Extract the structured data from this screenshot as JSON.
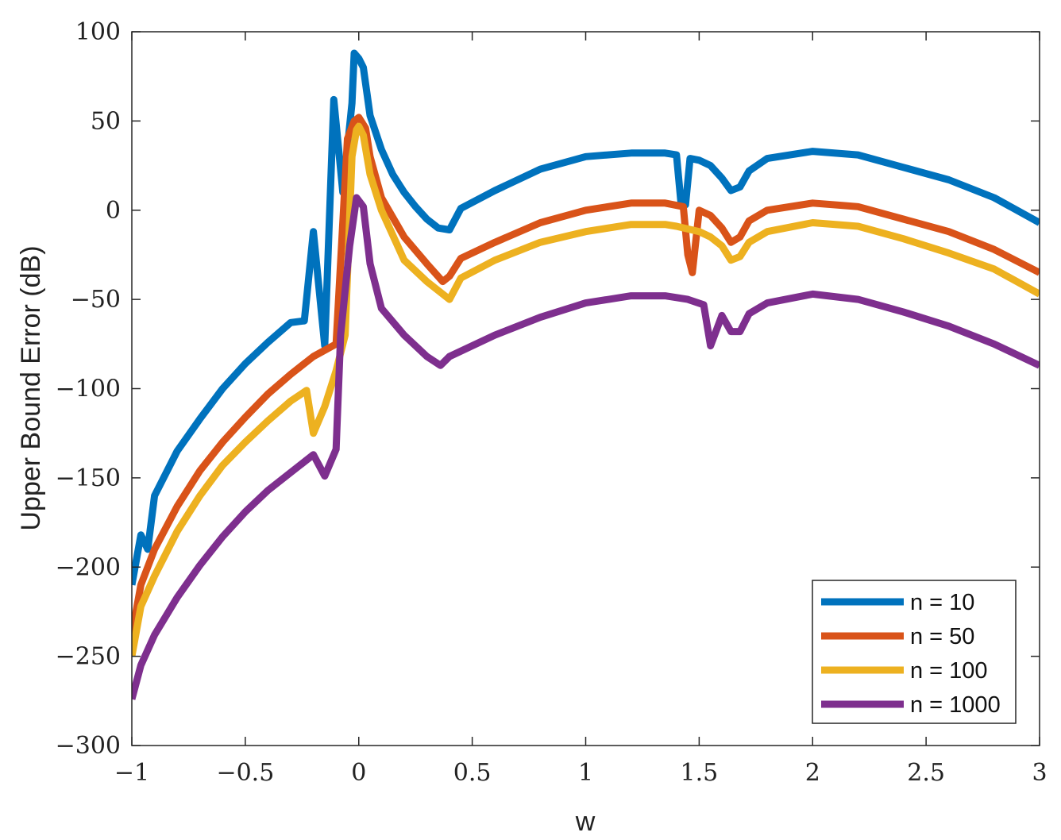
{
  "chart_data": {
    "type": "line",
    "title": "",
    "xlabel": "w",
    "ylabel": "Upper Bound Error (dB)",
    "xlim": [
      -1,
      3
    ],
    "ylim": [
      -300,
      100
    ],
    "xticks": [
      -1,
      -0.5,
      0,
      0.5,
      1,
      1.5,
      2,
      2.5,
      3
    ],
    "xtick_labels": [
      "−1",
      "−0.5",
      "0",
      "0.5",
      "1",
      "1.5",
      "2",
      "2.5",
      "3"
    ],
    "yticks": [
      100,
      50,
      0,
      -50,
      -100,
      -150,
      -200,
      -250,
      -300
    ],
    "ytick_labels": [
      "100",
      "50",
      "0",
      "−50",
      "−100",
      "−150",
      "−200",
      "−250",
      "−300"
    ],
    "grid": false,
    "legend_position": "bottom-right",
    "series": [
      {
        "name": "n = 10",
        "color": "#0072BD",
        "points": [
          [
            -1,
            -210
          ],
          [
            -0.96,
            -182
          ],
          [
            -0.93,
            -190
          ],
          [
            -0.9,
            -160
          ],
          [
            -0.8,
            -135
          ],
          [
            -0.7,
            -117
          ],
          [
            -0.6,
            -100
          ],
          [
            -0.5,
            -86
          ],
          [
            -0.4,
            -74
          ],
          [
            -0.3,
            -63
          ],
          [
            -0.24,
            -62
          ],
          [
            -0.2,
            -12
          ],
          [
            -0.15,
            -76
          ],
          [
            -0.11,
            62
          ],
          [
            -0.07,
            10
          ],
          [
            -0.03,
            60
          ],
          [
            -0.02,
            88
          ],
          [
            0,
            85
          ],
          [
            0.02,
            80
          ],
          [
            0.05,
            53
          ],
          [
            0.1,
            34
          ],
          [
            0.15,
            20
          ],
          [
            0.2,
            10
          ],
          [
            0.25,
            2
          ],
          [
            0.3,
            -5
          ],
          [
            0.35,
            -10
          ],
          [
            0.4,
            -11
          ],
          [
            0.45,
            1
          ],
          [
            0.6,
            11
          ],
          [
            0.8,
            23
          ],
          [
            1.0,
            30
          ],
          [
            1.2,
            32
          ],
          [
            1.35,
            32
          ],
          [
            1.4,
            31
          ],
          [
            1.42,
            4
          ],
          [
            1.44,
            3
          ],
          [
            1.46,
            29
          ],
          [
            1.5,
            28
          ],
          [
            1.55,
            25
          ],
          [
            1.6,
            18
          ],
          [
            1.64,
            11
          ],
          [
            1.68,
            13
          ],
          [
            1.72,
            22
          ],
          [
            1.8,
            29
          ],
          [
            2.0,
            33
          ],
          [
            2.2,
            31
          ],
          [
            2.4,
            24
          ],
          [
            2.6,
            17
          ],
          [
            2.8,
            7
          ],
          [
            3.0,
            -7
          ]
        ]
      },
      {
        "name": "n = 50",
        "color": "#D95319",
        "points": [
          [
            -1,
            -238
          ],
          [
            -0.96,
            -210
          ],
          [
            -0.9,
            -190
          ],
          [
            -0.8,
            -166
          ],
          [
            -0.7,
            -146
          ],
          [
            -0.6,
            -130
          ],
          [
            -0.5,
            -116
          ],
          [
            -0.4,
            -103
          ],
          [
            -0.3,
            -92
          ],
          [
            -0.2,
            -82
          ],
          [
            -0.1,
            -75
          ],
          [
            -0.05,
            40
          ],
          [
            -0.02,
            50
          ],
          [
            0,
            52
          ],
          [
            0.03,
            46
          ],
          [
            0.05,
            30
          ],
          [
            0.1,
            7
          ],
          [
            0.2,
            -15
          ],
          [
            0.3,
            -30
          ],
          [
            0.37,
            -40
          ],
          [
            0.4,
            -37
          ],
          [
            0.45,
            -27
          ],
          [
            0.6,
            -18
          ],
          [
            0.8,
            -7
          ],
          [
            1.0,
            0
          ],
          [
            1.2,
            4
          ],
          [
            1.35,
            4
          ],
          [
            1.43,
            2
          ],
          [
            1.45,
            -25
          ],
          [
            1.47,
            -35
          ],
          [
            1.5,
            0
          ],
          [
            1.55,
            -3
          ],
          [
            1.6,
            -10
          ],
          [
            1.64,
            -18
          ],
          [
            1.68,
            -15
          ],
          [
            1.72,
            -6
          ],
          [
            1.8,
            0
          ],
          [
            2.0,
            4
          ],
          [
            2.2,
            2
          ],
          [
            2.4,
            -5
          ],
          [
            2.6,
            -12
          ],
          [
            2.8,
            -22
          ],
          [
            3.0,
            -35
          ]
        ]
      },
      {
        "name": "n = 100",
        "color": "#EDB120",
        "points": [
          [
            -1,
            -250
          ],
          [
            -0.96,
            -222
          ],
          [
            -0.9,
            -205
          ],
          [
            -0.8,
            -180
          ],
          [
            -0.7,
            -160
          ],
          [
            -0.6,
            -143
          ],
          [
            -0.5,
            -130
          ],
          [
            -0.4,
            -118
          ],
          [
            -0.3,
            -107
          ],
          [
            -0.23,
            -101
          ],
          [
            -0.2,
            -125
          ],
          [
            -0.15,
            -110
          ],
          [
            -0.1,
            -90
          ],
          [
            -0.06,
            -70
          ],
          [
            -0.03,
            30
          ],
          [
            -0.01,
            45
          ],
          [
            0,
            47
          ],
          [
            0.02,
            42
          ],
          [
            0.05,
            20
          ],
          [
            0.1,
            0
          ],
          [
            0.2,
            -28
          ],
          [
            0.3,
            -40
          ],
          [
            0.4,
            -50
          ],
          [
            0.45,
            -38
          ],
          [
            0.6,
            -28
          ],
          [
            0.8,
            -18
          ],
          [
            1.0,
            -12
          ],
          [
            1.2,
            -8
          ],
          [
            1.35,
            -8
          ],
          [
            1.4,
            -9
          ],
          [
            1.5,
            -12
          ],
          [
            1.55,
            -15
          ],
          [
            1.6,
            -20
          ],
          [
            1.64,
            -28
          ],
          [
            1.68,
            -26
          ],
          [
            1.72,
            -18
          ],
          [
            1.8,
            -12
          ],
          [
            2.0,
            -7
          ],
          [
            2.2,
            -9
          ],
          [
            2.4,
            -16
          ],
          [
            2.6,
            -24
          ],
          [
            2.8,
            -33
          ],
          [
            3.0,
            -47
          ]
        ]
      },
      {
        "name": "n = 1000",
        "color": "#7E2F8E",
        "points": [
          [
            -1,
            -274
          ],
          [
            -0.96,
            -255
          ],
          [
            -0.9,
            -238
          ],
          [
            -0.8,
            -217
          ],
          [
            -0.7,
            -199
          ],
          [
            -0.6,
            -183
          ],
          [
            -0.5,
            -169
          ],
          [
            -0.4,
            -157
          ],
          [
            -0.3,
            -147
          ],
          [
            -0.2,
            -137
          ],
          [
            -0.15,
            -149
          ],
          [
            -0.1,
            -134
          ],
          [
            -0.08,
            -70
          ],
          [
            -0.04,
            -20
          ],
          [
            -0.01,
            7
          ],
          [
            0.02,
            2
          ],
          [
            0.05,
            -30
          ],
          [
            0.1,
            -55
          ],
          [
            0.2,
            -70
          ],
          [
            0.3,
            -82
          ],
          [
            0.36,
            -87
          ],
          [
            0.4,
            -82
          ],
          [
            0.6,
            -70
          ],
          [
            0.8,
            -60
          ],
          [
            1.0,
            -52
          ],
          [
            1.2,
            -48
          ],
          [
            1.35,
            -48
          ],
          [
            1.45,
            -50
          ],
          [
            1.52,
            -53
          ],
          [
            1.55,
            -76
          ],
          [
            1.6,
            -59
          ],
          [
            1.64,
            -68
          ],
          [
            1.68,
            -68
          ],
          [
            1.72,
            -58
          ],
          [
            1.8,
            -52
          ],
          [
            2.0,
            -47
          ],
          [
            2.2,
            -50
          ],
          [
            2.4,
            -57
          ],
          [
            2.6,
            -65
          ],
          [
            2.8,
            -75
          ],
          [
            3.0,
            -87
          ]
        ]
      }
    ]
  }
}
